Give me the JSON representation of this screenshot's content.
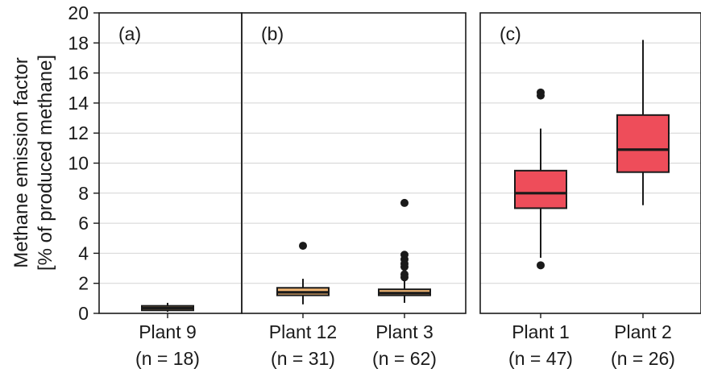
{
  "chart_data": {
    "type": "box",
    "ylabel_lines": [
      "Methane emission factor",
      "[% of produced methane]"
    ],
    "ylim": [
      0,
      20
    ],
    "yticks": [
      0,
      2,
      4,
      6,
      8,
      10,
      12,
      14,
      16,
      18,
      20
    ],
    "grid": "horizontal",
    "panels": [
      {
        "tag": "(a)",
        "boxes": [
          {
            "name": "Plant 9",
            "n_label": "(n = 18)",
            "color": "#c8a06a",
            "whisker_low": 0.1,
            "q1": 0.2,
            "median": 0.35,
            "q3": 0.5,
            "whisker_high": 0.7,
            "outliers": []
          }
        ]
      },
      {
        "tag": "(b)",
        "boxes": [
          {
            "name": "Plant 12",
            "n_label": "(n = 31)",
            "color": "#f2b774",
            "whisker_low": 0.6,
            "q1": 1.2,
            "median": 1.4,
            "q3": 1.7,
            "whisker_high": 2.3,
            "outliers": [
              4.5
            ]
          },
          {
            "name": "Plant 3",
            "n_label": "(n = 62)",
            "color": "#f2b774",
            "whisker_low": 0.7,
            "q1": 1.2,
            "median": 1.35,
            "q3": 1.6,
            "whisker_high": 2.2,
            "outliers": [
              2.4,
              2.6,
              3.1,
              3.3,
              3.6,
              3.9,
              7.35
            ]
          }
        ]
      },
      {
        "tag": "(c)",
        "boxes": [
          {
            "name": "Plant 1",
            "n_label": "(n = 47)",
            "color": "#ee4d5a",
            "whisker_low": 3.7,
            "q1": 7.0,
            "median": 8.0,
            "q3": 9.5,
            "whisker_high": 12.3,
            "outliers": [
              3.2,
              14.5,
              14.7
            ]
          },
          {
            "name": "Plant 2",
            "n_label": "(n = 26)",
            "color": "#ee4d5a",
            "whisker_low": 7.2,
            "q1": 9.4,
            "median": 10.9,
            "q3": 13.2,
            "whisker_high": 18.2,
            "outliers": []
          }
        ]
      }
    ]
  },
  "colors": {
    "frame": "#1a1a1a",
    "grid": "#d4d4d4",
    "median": "#1a1a1a"
  }
}
